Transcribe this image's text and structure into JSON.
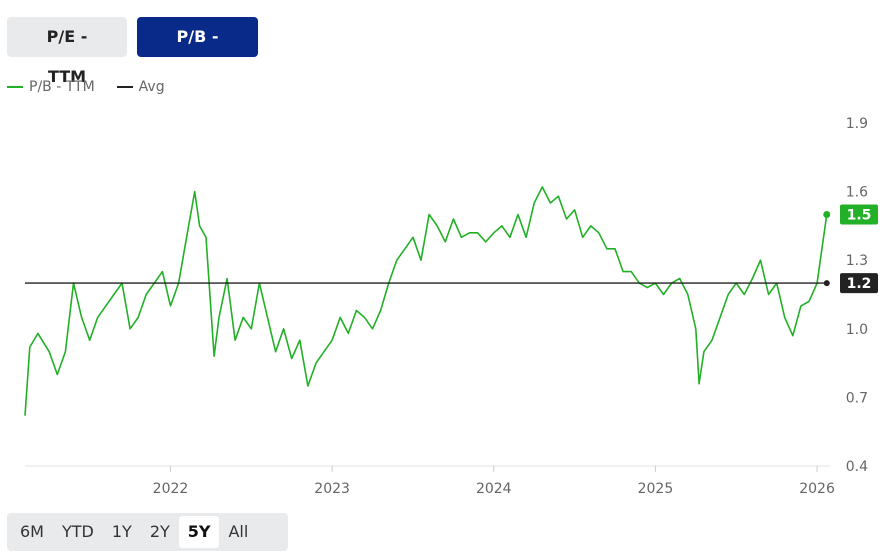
{
  "metric_tabs": [
    {
      "label": "P/E - TTM",
      "active": false
    },
    {
      "label": "P/B - TTM",
      "active": true
    }
  ],
  "legend": [
    {
      "label": "P/B - TTM",
      "color": "#22b026"
    },
    {
      "label": "Avg",
      "color": "#222222"
    }
  ],
  "range_buttons": [
    {
      "label": "6M",
      "selected": false
    },
    {
      "label": "YTD",
      "selected": false
    },
    {
      "label": "1Y",
      "selected": false
    },
    {
      "label": "2Y",
      "selected": false
    },
    {
      "label": "5Y",
      "selected": true
    },
    {
      "label": "All",
      "selected": false
    }
  ],
  "chart_data": {
    "type": "line",
    "title": "",
    "xlabel": "",
    "ylabel": "",
    "x_ticks": [
      "2022",
      "2023",
      "2024",
      "2025",
      "2026"
    ],
    "x_tick_years": [
      2022,
      2023,
      2024,
      2025,
      2026
    ],
    "y_ticks": [
      "1.9",
      "1.6",
      "1.3",
      "1.0",
      "0.7",
      "0.4"
    ],
    "ylim": [
      0.4,
      1.9
    ],
    "xlim": [
      2021.1,
      2026.08
    ],
    "grid": false,
    "legend_position": "top-left",
    "series": [
      {
        "name": "P/B - TTM",
        "color": "#22b026",
        "x": [
          2021.1,
          2021.13,
          2021.18,
          2021.25,
          2021.3,
          2021.35,
          2021.4,
          2021.45,
          2021.5,
          2021.55,
          2021.6,
          2021.65,
          2021.7,
          2021.75,
          2021.8,
          2021.85,
          2021.9,
          2021.95,
          2022.0,
          2022.05,
          2022.1,
          2022.15,
          2022.18,
          2022.22,
          2022.27,
          2022.3,
          2022.35,
          2022.4,
          2022.45,
          2022.5,
          2022.55,
          2022.6,
          2022.65,
          2022.7,
          2022.75,
          2022.8,
          2022.85,
          2022.9,
          2022.95,
          2023.0,
          2023.05,
          2023.1,
          2023.15,
          2023.2,
          2023.25,
          2023.3,
          2023.35,
          2023.4,
          2023.45,
          2023.5,
          2023.55,
          2023.6,
          2023.65,
          2023.7,
          2023.75,
          2023.8,
          2023.85,
          2023.9,
          2023.95,
          2024.0,
          2024.05,
          2024.1,
          2024.15,
          2024.2,
          2024.25,
          2024.3,
          2024.35,
          2024.4,
          2024.45,
          2024.5,
          2024.55,
          2024.6,
          2024.65,
          2024.7,
          2024.75,
          2024.8,
          2024.85,
          2024.9,
          2024.95,
          2025.0,
          2025.05,
          2025.1,
          2025.15,
          2025.2,
          2025.25,
          2025.27,
          2025.3,
          2025.35,
          2025.4,
          2025.45,
          2025.5,
          2025.55,
          2025.6,
          2025.65,
          2025.7,
          2025.75,
          2025.8,
          2025.85,
          2025.9,
          2025.95,
          2026.0,
          2026.03,
          2026.06
        ],
        "values": [
          0.62,
          0.92,
          0.98,
          0.9,
          0.8,
          0.9,
          1.2,
          1.05,
          0.95,
          1.05,
          1.1,
          1.15,
          1.2,
          1.0,
          1.05,
          1.15,
          1.2,
          1.25,
          1.1,
          1.2,
          1.4,
          1.6,
          1.45,
          1.4,
          0.88,
          1.05,
          1.22,
          0.95,
          1.05,
          1.0,
          1.2,
          1.05,
          0.9,
          1.0,
          0.87,
          0.95,
          0.75,
          0.85,
          0.9,
          0.95,
          1.05,
          0.98,
          1.08,
          1.05,
          1.0,
          1.08,
          1.2,
          1.3,
          1.35,
          1.4,
          1.3,
          1.5,
          1.45,
          1.38,
          1.48,
          1.4,
          1.42,
          1.42,
          1.38,
          1.42,
          1.45,
          1.4,
          1.5,
          1.4,
          1.55,
          1.62,
          1.55,
          1.58,
          1.48,
          1.52,
          1.4,
          1.45,
          1.42,
          1.35,
          1.35,
          1.25,
          1.25,
          1.2,
          1.18,
          1.2,
          1.15,
          1.2,
          1.22,
          1.15,
          1.0,
          0.76,
          0.9,
          0.95,
          1.05,
          1.15,
          1.2,
          1.15,
          1.22,
          1.3,
          1.15,
          1.2,
          1.05,
          0.97,
          1.1,
          1.12,
          1.2,
          1.35,
          1.5
        ]
      },
      {
        "name": "Avg",
        "color": "#222222",
        "x": [
          2021.1,
          2026.06
        ],
        "values": [
          1.2,
          1.2
        ]
      }
    ],
    "badges": [
      {
        "label": "1.5",
        "value": 1.5,
        "color": "#22b026"
      },
      {
        "label": "1.2",
        "value": 1.2,
        "color": "#222222"
      }
    ]
  }
}
